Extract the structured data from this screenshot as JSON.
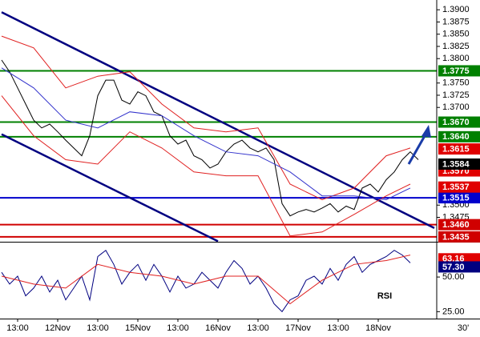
{
  "chart_data": [
    {
      "type": "line",
      "timeframe": "30'",
      "xlim": [
        0.56,
        11.46
      ],
      "ylim": [
        1.3425,
        1.392
      ],
      "yticks": [
        {
          "value": 1.39,
          "label": "1.3900"
        },
        {
          "value": 1.3875,
          "label": "1.3875"
        },
        {
          "value": 1.385,
          "label": "1.3850"
        },
        {
          "value": 1.3825,
          "label": "1.3825"
        },
        {
          "value": 1.38,
          "label": "1.3800"
        },
        {
          "value": 1.375,
          "label": "1.3750"
        },
        {
          "value": 1.3725,
          "label": "1.3725"
        },
        {
          "value": 1.37,
          "label": "1.3700"
        },
        {
          "value": 1.35,
          "label": "1.3500"
        },
        {
          "value": 1.3475,
          "label": "1.3475"
        }
      ],
      "levels": [
        {
          "value": 1.3775,
          "label": "1.3775",
          "color": "#008000"
        },
        {
          "value": 1.367,
          "label": "1.3670",
          "color": "#008000"
        },
        {
          "value": 1.364,
          "label": "1.3640",
          "color": "#008000"
        },
        {
          "value": 1.3515,
          "label": "1.3515",
          "color": "#0000cc"
        },
        {
          "value": 1.346,
          "label": "1.3460",
          "color": "#d00000"
        },
        {
          "value": 1.3435,
          "label": "1.3435",
          "color": "#d00000"
        }
      ],
      "markers": [
        {
          "value": 1.3615,
          "label": "1.3615",
          "color": "#e00000"
        },
        {
          "value": 1.357,
          "label": "1.3570",
          "color": "#e00000"
        },
        {
          "value": 1.3584,
          "label": "1.3584",
          "color": "#000000"
        },
        {
          "value": 1.3537,
          "label": "1.3537",
          "color": "#e00000"
        }
      ],
      "trendlines": [
        {
          "color": "#000080",
          "x": [
            0.6,
            11.4
          ],
          "values": [
            1.3895,
            1.3453
          ]
        },
        {
          "color": "#000080",
          "x": [
            0.6,
            6.0
          ],
          "values": [
            1.3645,
            1.3426
          ]
        }
      ],
      "series": [
        {
          "color": "#000000",
          "x": [
            0.6,
            0.8,
            1,
            1.2,
            1.4,
            1.6,
            1.8,
            2,
            2.2,
            2.4,
            2.6,
            2.8,
            3,
            3.2,
            3.4,
            3.6,
            3.8,
            4,
            4.2,
            4.4,
            4.6,
            4.8,
            5,
            5.2,
            5.4,
            5.6,
            5.8,
            6,
            6.2,
            6.4,
            6.6,
            6.8,
            7,
            7.2,
            7.4,
            7.6,
            7.8,
            8,
            8.2,
            8.4,
            8.6,
            8.8,
            9,
            9.2,
            9.4,
            9.6,
            9.8,
            10,
            10.2,
            10.4,
            10.6,
            10.8,
            11
          ],
          "values": [
            1.3797,
            1.3773,
            1.374,
            1.3707,
            1.3674,
            1.3658,
            1.3666,
            1.365,
            1.3633,
            1.3617,
            1.3601,
            1.3642,
            1.3724,
            1.3756,
            1.3756,
            1.3715,
            1.3707,
            1.3732,
            1.3724,
            1.3691,
            1.3683,
            1.3642,
            1.3625,
            1.3633,
            1.3601,
            1.3593,
            1.3576,
            1.3584,
            1.3609,
            1.3625,
            1.3633,
            1.3617,
            1.3609,
            1.3617,
            1.3593,
            1.3503,
            1.3478,
            1.3486,
            1.3491,
            1.3486,
            1.3494,
            1.3503,
            1.3486,
            1.3498,
            1.3491,
            1.3535,
            1.3543,
            1.3527,
            1.3552,
            1.3568,
            1.3593,
            1.3609,
            1.3593
          ]
        },
        {
          "color": "#e02020",
          "x": [
            0.6,
            1.4,
            2.2,
            3,
            3.8,
            4.6,
            5.4,
            6.2,
            7,
            7.8,
            8.6,
            9.4,
            10.2,
            10.8
          ],
          "values": [
            1.3846,
            1.3822,
            1.374,
            1.3764,
            1.3773,
            1.3707,
            1.3658,
            1.365,
            1.3658,
            1.3543,
            1.3511,
            1.3535,
            1.3601,
            1.3617
          ]
        },
        {
          "color": "#e02020",
          "x": [
            0.6,
            1.4,
            2.2,
            3,
            3.8,
            4.6,
            5.4,
            6.2,
            7,
            7.8,
            8.6,
            9.4,
            10.2,
            10.8
          ],
          "values": [
            1.3724,
            1.3642,
            1.3593,
            1.3584,
            1.365,
            1.3617,
            1.3568,
            1.356,
            1.356,
            1.3437,
            1.3445,
            1.3481,
            1.3519,
            1.3543
          ]
        },
        {
          "color": "#3333cc",
          "x": [
            0.6,
            1.4,
            2.2,
            3,
            3.8,
            4.6,
            5.4,
            6.2,
            7,
            7.8,
            8.6,
            9.4,
            10.2,
            10.8
          ],
          "values": [
            1.3781,
            1.374,
            1.3674,
            1.3658,
            1.3691,
            1.3683,
            1.3642,
            1.3609,
            1.3601,
            1.3568,
            1.3519,
            1.3519,
            1.3511,
            1.3535
          ]
        }
      ]
    },
    {
      "type": "line",
      "label": "RSI",
      "xlim": [
        0.56,
        11.46
      ],
      "ylim": [
        20,
        72
      ],
      "xticks": [
        {
          "value": 1,
          "label": "13:00"
        },
        {
          "value": 2,
          "label": "12Nov"
        },
        {
          "value": 3,
          "label": "13:00"
        },
        {
          "value": 4,
          "label": "15Nov"
        },
        {
          "value": 5,
          "label": "13:00"
        },
        {
          "value": 6,
          "label": "16Nov"
        },
        {
          "value": 7,
          "label": "13:00"
        },
        {
          "value": 8,
          "label": "17Nov"
        },
        {
          "value": 9,
          "label": "13:00"
        },
        {
          "value": 10,
          "label": "18Nov"
        }
      ],
      "yticks": [
        {
          "value": 50,
          "label": "50.00"
        },
        {
          "value": 25,
          "label": "25.00"
        }
      ],
      "markers": [
        {
          "value": 63.16,
          "label": "63.16",
          "color": "#e00000"
        },
        {
          "value": 57.3,
          "label": "57.30",
          "color": "#000080"
        }
      ],
      "series": [
        {
          "color": "#000080",
          "x": [
            0.6,
            0.8,
            1,
            1.2,
            1.4,
            1.6,
            1.8,
            2,
            2.2,
            2.4,
            2.6,
            2.8,
            3,
            3.2,
            3.4,
            3.6,
            3.8,
            4,
            4.2,
            4.4,
            4.6,
            4.8,
            5,
            5.2,
            5.4,
            5.6,
            5.8,
            6,
            6.2,
            6.4,
            6.6,
            6.8,
            7,
            7.2,
            7.4,
            7.6,
            7.8,
            8,
            8.2,
            8.4,
            8.6,
            8.8,
            9,
            9.2,
            9.4,
            9.6,
            9.8,
            10,
            10.2,
            10.4,
            10.6,
            10.8
          ],
          "values": [
            53.4,
            44.9,
            50.6,
            36.4,
            42,
            50.6,
            39.2,
            47.7,
            33.5,
            42,
            50.6,
            33.5,
            64.8,
            69.3,
            59.1,
            44.9,
            53.4,
            59.1,
            47.7,
            59.1,
            50.6,
            39.2,
            50.6,
            42,
            44.9,
            53.4,
            47.7,
            42,
            53.4,
            61.9,
            56.2,
            44.9,
            50.6,
            42,
            30.7,
            25,
            33.5,
            36.4,
            47.7,
            50.6,
            44.9,
            56.2,
            47.7,
            59.1,
            64.8,
            53.4,
            59.1,
            61.9,
            64.8,
            69.3,
            65.9,
            60.2
          ]
        },
        {
          "color": "#e02020",
          "x": [
            0.6,
            1.4,
            2.2,
            3,
            3.8,
            4.6,
            5.4,
            6.2,
            7,
            7.8,
            8.6,
            9.4,
            10.2,
            10.8
          ],
          "values": [
            50.6,
            44.9,
            42,
            59.1,
            53.4,
            50.6,
            44.9,
            50.6,
            50.6,
            30.7,
            47.7,
            59.1,
            61.9,
            65.9
          ]
        }
      ]
    }
  ]
}
